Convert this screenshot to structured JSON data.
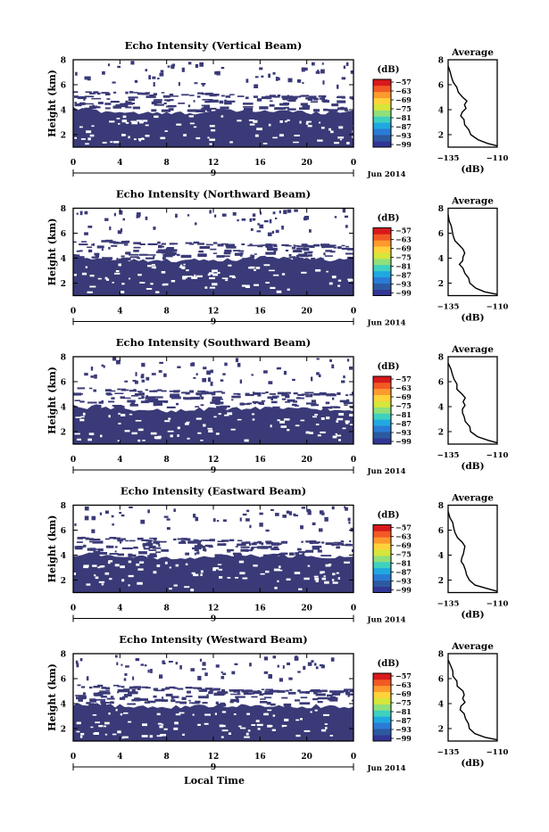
{
  "figure": {
    "bottom_xlabel": "Local Time",
    "date_label": "Jun 2014",
    "colorbar_unit": "(dB)",
    "colorbar_ticks": [
      "-57",
      "-63",
      "-69",
      "-75",
      "-81",
      "-87",
      "-93",
      "-99"
    ],
    "colorbar_colors": [
      "#313695",
      "#2c5aa0",
      "#2a7bd6",
      "#1fa9e0",
      "#3fd0c0",
      "#8fe07a",
      "#d6e63a",
      "#ffd23a",
      "#fd9a2e",
      "#f25a24",
      "#d7191c"
    ],
    "heatmap_fill": "#3a3a78",
    "avg_title": "Average",
    "avg_unit": "(dB)"
  },
  "chart_data": [
    {
      "type": "heatmap",
      "title": "Echo Intensity (Vertical Beam)",
      "ylabel": "Height (km)",
      "xlim": [
        0,
        24
      ],
      "ylim": [
        1,
        8
      ],
      "x_ticks": [
        "0",
        "4",
        "8",
        "12",
        "16",
        "20",
        "0"
      ],
      "y_ticks": [
        "2",
        "4",
        "6",
        "8"
      ],
      "x_minor_label": "9",
      "colorbar": {
        "label": "(dB)",
        "ticks": [
          -57,
          -63,
          -69,
          -75,
          -81,
          -87,
          -93,
          -99
        ]
      },
      "cloud_top_km": [
        4.1,
        3.9,
        3.8,
        3.7,
        3.7,
        3.8,
        3.9,
        3.9,
        3.9,
        3.8,
        3.8,
        3.9
      ],
      "upper_layer_km": [
        5.3,
        5.3,
        5.3,
        5.2,
        5.2,
        5.2,
        5.1,
        5.0,
        5.0,
        5.0,
        4.9,
        4.9
      ],
      "average_profile": {
        "title": "Average",
        "xlabel": "(dB)",
        "xlim": [
          -135,
          -110
        ],
        "ylim": [
          1,
          8
        ],
        "x_ticks": [
          "-135",
          "-110"
        ],
        "y_ticks": [
          "2",
          "4",
          "6",
          "8"
        ],
        "height_km": [
          1.1,
          1.3,
          1.6,
          2.0,
          2.4,
          2.8,
          3.2,
          3.5,
          3.8,
          4.1,
          4.4,
          4.7,
          5.0,
          5.4,
          5.8,
          6.2,
          6.6,
          7.0,
          7.5
        ],
        "value_db": [
          -110,
          -115,
          -120,
          -123,
          -125,
          -126,
          -127,
          -129,
          -128,
          -126,
          -127,
          -126,
          -128,
          -130,
          -131,
          -132,
          -133,
          -134,
          -135
        ]
      }
    },
    {
      "type": "heatmap",
      "title": "Echo Intensity (Northward Beam)",
      "ylabel": "Height (km)",
      "xlim": [
        0,
        24
      ],
      "ylim": [
        1,
        8
      ],
      "x_ticks": [
        "0",
        "4",
        "8",
        "12",
        "16",
        "20",
        "0"
      ],
      "y_ticks": [
        "2",
        "4",
        "6",
        "8"
      ],
      "x_minor_label": "9",
      "colorbar": {
        "label": "(dB)",
        "ticks": [
          -57,
          -63,
          -69,
          -75,
          -81,
          -87,
          -93,
          -99
        ]
      },
      "cloud_top_km": [
        4.2,
        4.0,
        3.9,
        3.8,
        3.8,
        3.8,
        3.9,
        4.0,
        4.1,
        4.0,
        3.9,
        3.9
      ],
      "upper_layer_km": [
        5.3,
        5.3,
        5.2,
        5.2,
        5.2,
        5.1,
        5.1,
        5.0,
        5.0,
        5.0,
        4.9,
        4.9
      ],
      "average_profile": {
        "title": "Average",
        "xlabel": "(dB)",
        "xlim": [
          -135,
          -110
        ],
        "ylim": [
          1,
          8
        ],
        "x_ticks": [
          "-135",
          "-110"
        ],
        "y_ticks": [
          "2",
          "4",
          "6",
          "8"
        ],
        "height_km": [
          1.1,
          1.3,
          1.6,
          2.0,
          2.4,
          2.8,
          3.2,
          3.5,
          3.8,
          4.1,
          4.4,
          4.7,
          5.0,
          5.4,
          5.8,
          6.2,
          6.6,
          7.0,
          7.5
        ],
        "value_db": [
          -110,
          -116,
          -121,
          -124,
          -125,
          -127,
          -127,
          -129,
          -128,
          -127,
          -127,
          -127,
          -129,
          -131,
          -132,
          -133,
          -134,
          -134,
          -135
        ]
      }
    },
    {
      "type": "heatmap",
      "title": "Echo Intensity (Southward Beam)",
      "ylabel": "Height (km)",
      "xlim": [
        0,
        24
      ],
      "ylim": [
        1,
        8
      ],
      "x_ticks": [
        "0",
        "4",
        "8",
        "12",
        "16",
        "20",
        "0"
      ],
      "y_ticks": [
        "2",
        "4",
        "6",
        "8"
      ],
      "x_minor_label": "9",
      "colorbar": {
        "label": "(dB)",
        "ticks": [
          -57,
          -63,
          -69,
          -75,
          -81,
          -87,
          -93,
          -99
        ]
      },
      "cloud_top_km": [
        4.0,
        3.9,
        3.8,
        3.7,
        3.7,
        3.8,
        3.8,
        3.9,
        3.9,
        3.8,
        3.8,
        3.8
      ],
      "upper_layer_km": [
        5.4,
        5.3,
        5.3,
        5.2,
        5.2,
        5.1,
        5.1,
        5.0,
        5.0,
        4.9,
        4.9,
        4.8
      ],
      "average_profile": {
        "title": "Average",
        "xlabel": "(dB)",
        "xlim": [
          -135,
          -110
        ],
        "ylim": [
          1,
          8
        ],
        "x_ticks": [
          "-135",
          "-110"
        ],
        "y_ticks": [
          "2",
          "4",
          "6",
          "8"
        ],
        "height_km": [
          1.1,
          1.3,
          1.6,
          2.0,
          2.4,
          2.8,
          3.2,
          3.5,
          3.8,
          4.1,
          4.4,
          4.7,
          5.0,
          5.4,
          5.8,
          6.2,
          6.6,
          7.0,
          7.5
        ],
        "value_db": [
          -110,
          -115,
          -120,
          -123,
          -124,
          -126,
          -127,
          -128,
          -128,
          -126,
          -127,
          -126,
          -128,
          -130,
          -131,
          -132,
          -133,
          -134,
          -135
        ]
      }
    },
    {
      "type": "heatmap",
      "title": "Echo Intensity (Eastward Beam)",
      "ylabel": "Height (km)",
      "xlim": [
        0,
        24
      ],
      "ylim": [
        1,
        8
      ],
      "x_ticks": [
        "0",
        "4",
        "8",
        "12",
        "16",
        "20",
        "0"
      ],
      "y_ticks": [
        "2",
        "4",
        "6",
        "8"
      ],
      "x_minor_label": "9",
      "colorbar": {
        "label": "(dB)",
        "ticks": [
          -57,
          -63,
          -69,
          -75,
          -81,
          -87,
          -93,
          -99
        ]
      },
      "cloud_top_km": [
        4.1,
        4.0,
        3.9,
        3.8,
        3.7,
        3.8,
        3.9,
        4.0,
        4.0,
        3.9,
        3.8,
        3.8
      ],
      "upper_layer_km": [
        5.3,
        5.3,
        5.2,
        5.2,
        5.2,
        5.1,
        5.1,
        5.0,
        5.0,
        5.0,
        4.9,
        4.8
      ],
      "average_profile": {
        "title": "Average",
        "xlabel": "(dB)",
        "xlim": [
          -135,
          -110
        ],
        "ylim": [
          1,
          8
        ],
        "x_ticks": [
          "-135",
          "-110"
        ],
        "y_ticks": [
          "2",
          "4",
          "6",
          "8"
        ],
        "height_km": [
          1.1,
          1.3,
          1.6,
          2.0,
          2.4,
          2.8,
          3.2,
          3.5,
          3.8,
          4.1,
          4.4,
          4.7,
          5.0,
          5.4,
          5.8,
          6.2,
          6.6,
          7.0,
          7.5
        ],
        "value_db": [
          -110,
          -115,
          -121,
          -124,
          -125,
          -126,
          -127,
          -128,
          -128,
          -127,
          -127,
          -126,
          -128,
          -130,
          -131,
          -132,
          -133,
          -134,
          -135
        ]
      }
    },
    {
      "type": "heatmap",
      "title": "Echo Intensity (Westward Beam)",
      "ylabel": "Height (km)",
      "xlim": [
        0,
        24
      ],
      "ylim": [
        1,
        8
      ],
      "x_ticks": [
        "0",
        "4",
        "8",
        "12",
        "16",
        "20",
        "0"
      ],
      "y_ticks": [
        "2",
        "4",
        "6",
        "8"
      ],
      "x_minor_label": "9",
      "colorbar": {
        "label": "(dB)",
        "ticks": [
          -57,
          -63,
          -69,
          -75,
          -81,
          -87,
          -93,
          -99
        ]
      },
      "cloud_top_km": [
        4.0,
        3.9,
        3.8,
        3.7,
        3.7,
        3.8,
        3.8,
        3.9,
        3.9,
        3.8,
        3.8,
        3.8
      ],
      "upper_layer_km": [
        5.4,
        5.3,
        5.3,
        5.2,
        5.2,
        5.1,
        5.1,
        5.0,
        5.0,
        4.9,
        4.9,
        4.8
      ],
      "average_profile": {
        "title": "Average",
        "xlabel": "(dB)",
        "xlim": [
          -135,
          -110
        ],
        "ylim": [
          1,
          8
        ],
        "x_ticks": [
          "-135",
          "-110"
        ],
        "y_ticks": [
          "2",
          "4",
          "6",
          "8"
        ],
        "height_km": [
          1.1,
          1.3,
          1.6,
          2.0,
          2.4,
          2.8,
          3.2,
          3.5,
          3.8,
          4.1,
          4.4,
          4.7,
          5.0,
          5.4,
          5.8,
          6.2,
          6.6,
          7.0,
          7.5
        ],
        "value_db": [
          -110,
          -116,
          -121,
          -124,
          -125,
          -126,
          -127,
          -129,
          -128,
          -126,
          -127,
          -127,
          -128,
          -130,
          -131,
          -132,
          -133,
          -134,
          -135
        ]
      }
    }
  ]
}
